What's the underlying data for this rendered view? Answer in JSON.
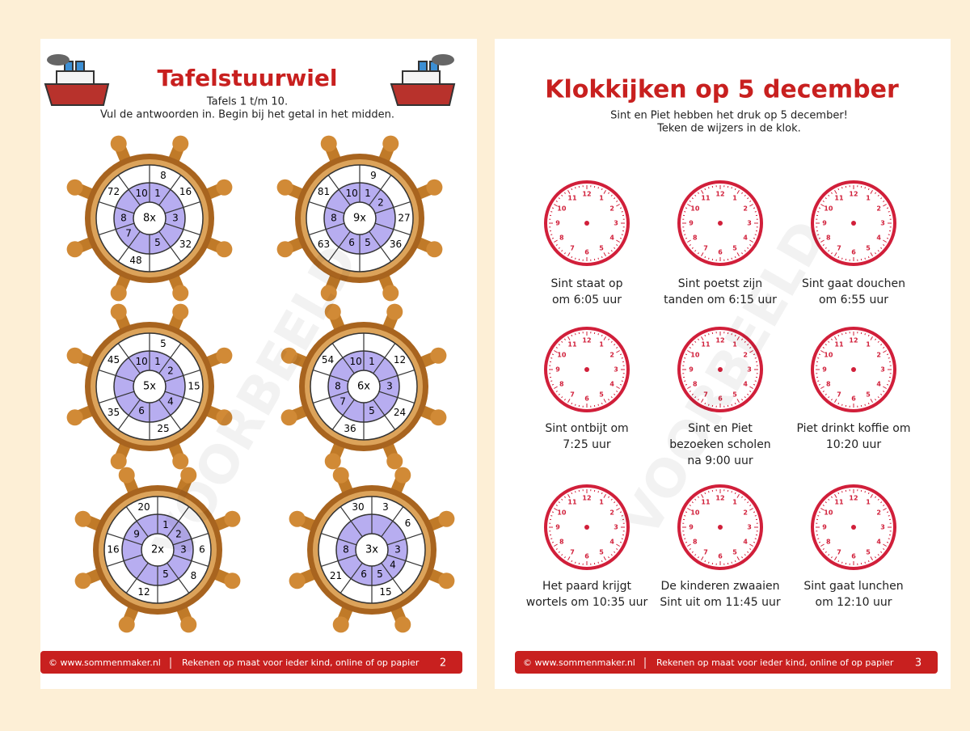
{
  "page1": {
    "title": "Tafelstuurwiel",
    "subtitle": [
      "Tafels 1 t/m 10.",
      "Vul de antwoorden in. Begin bij het getal in het midden."
    ],
    "wheels": [
      {
        "center": "8x",
        "inner": [
          "1",
          null,
          "3",
          null,
          "5",
          null,
          "7",
          "8",
          null,
          "10"
        ],
        "outer": [
          "8",
          "16",
          null,
          "32",
          null,
          "48",
          null,
          null,
          "72",
          null
        ]
      },
      {
        "center": "9x",
        "inner": [
          "1",
          "2",
          null,
          null,
          "5",
          "6",
          null,
          "8",
          null,
          "10"
        ],
        "outer": [
          "9",
          null,
          "27",
          "36",
          null,
          null,
          "63",
          null,
          "81",
          null
        ]
      },
      {
        "center": "5x",
        "inner": [
          "1",
          "2",
          null,
          "4",
          null,
          "6",
          null,
          null,
          null,
          "10"
        ],
        "outer": [
          "5",
          null,
          "15",
          null,
          "25",
          null,
          "35",
          null,
          "45",
          null
        ]
      },
      {
        "center": "6x",
        "inner": [
          "1",
          null,
          "3",
          null,
          "5",
          null,
          "7",
          "8",
          null,
          "10"
        ],
        "outer": [
          null,
          "12",
          null,
          "24",
          null,
          "36",
          null,
          null,
          "54",
          null
        ]
      },
      {
        "center": "2x",
        "inner": [
          "1",
          "2",
          "3",
          null,
          "5",
          null,
          null,
          null,
          "9",
          null
        ],
        "outer": [
          null,
          null,
          "6",
          "8",
          null,
          "12",
          null,
          "16",
          null,
          "20"
        ]
      },
      {
        "center": "3x",
        "inner": [
          null,
          null,
          "3",
          "4",
          "5",
          "6",
          null,
          "8",
          null,
          null
        ],
        "outer": [
          "3",
          "6",
          null,
          null,
          "15",
          null,
          "21",
          null,
          null,
          "30"
        ]
      }
    ],
    "footer": {
      "site": "© www.sommenmaker.nl",
      "tagline": "Rekenen op maat voor ieder kind, online of op papier",
      "page": "2"
    }
  },
  "page2": {
    "title": "Klokkijken op 5 december",
    "subtitle": [
      "Sint en Piet hebben het druk op 5 december!",
      "Teken de wijzers in de klok."
    ],
    "clock_numbers": [
      "12",
      "1",
      "2",
      "3",
      "4",
      "5",
      "6",
      "7",
      "8",
      "9",
      "10",
      "11"
    ],
    "clocks": [
      [
        "Sint staat op",
        "om 6:05 uur"
      ],
      [
        "Sint poetst zijn",
        "tanden om 6:15 uur"
      ],
      [
        "Sint gaat douchen",
        "om 6:55 uur"
      ],
      [
        "Sint ontbijt om",
        "7:25 uur"
      ],
      [
        "Sint en Piet",
        "bezoeken scholen",
        "na 9:00 uur"
      ],
      [
        "Piet drinkt koffie om",
        "10:20 uur"
      ],
      [
        "Het paard krijgt",
        "wortels om 10:35 uur"
      ],
      [
        "De kinderen zwaaien",
        "Sint uit om 11:45 uur"
      ],
      [
        "Sint gaat lunchen",
        "om 12:10 uur"
      ]
    ],
    "footer": {
      "site": "© www.sommenmaker.nl",
      "tagline": "Rekenen op maat voor ieder kind, online of op papier",
      "page": "3"
    }
  },
  "watermark": "VOORBEELD"
}
